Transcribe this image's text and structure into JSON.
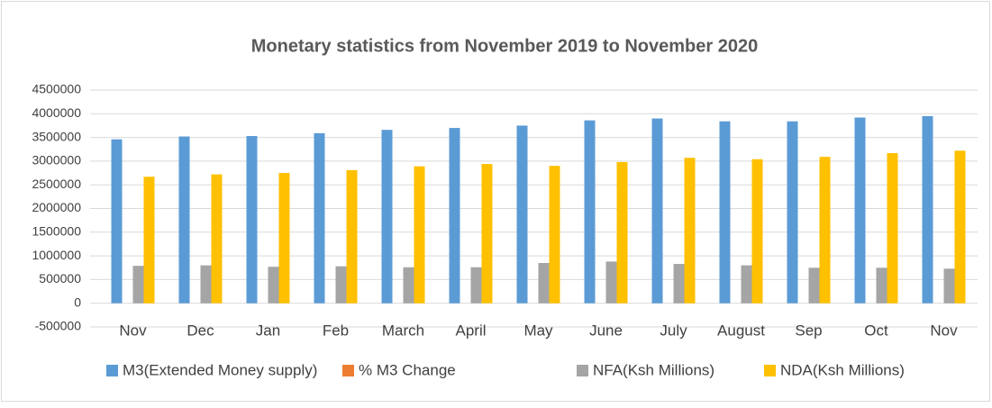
{
  "chart_data": {
    "type": "bar",
    "title": "Monetary statistics from November 2019 to November 2020",
    "categories": [
      "Nov",
      "Dec",
      "Jan",
      "Feb",
      "March",
      "April",
      "May",
      "June",
      "July",
      "August",
      "Sep",
      "Oct",
      "Nov"
    ],
    "series": [
      {
        "name": "M3(Extended Money supply)",
        "color": "#5b9bd5",
        "values": [
          3460000,
          3520000,
          3530000,
          3590000,
          3660000,
          3700000,
          3750000,
          3860000,
          3900000,
          3840000,
          3840000,
          3920000,
          3950000
        ]
      },
      {
        "name": "% M3 Change",
        "color": "#ed7d31",
        "values": [
          5.6,
          5.9,
          6.0,
          7.1,
          8.1,
          8.0,
          8.2,
          10.8,
          12.0,
          11.3,
          11.1,
          12.1,
          13.4
        ]
      },
      {
        "name": "NFA(Ksh Millions)",
        "color": "#a5a5a5",
        "values": [
          790000,
          800000,
          770000,
          780000,
          760000,
          760000,
          850000,
          880000,
          830000,
          800000,
          750000,
          750000,
          730000
        ]
      },
      {
        "name": "NDA(Ksh Millions)",
        "color": "#ffc000",
        "values": [
          2670000,
          2720000,
          2750000,
          2810000,
          2890000,
          2940000,
          2900000,
          2980000,
          3070000,
          3040000,
          3090000,
          3170000,
          3220000
        ]
      }
    ],
    "ylim": [
      -500000,
      4500000
    ],
    "yticks": [
      -500000,
      0,
      500000,
      1000000,
      1500000,
      2000000,
      2500000,
      3000000,
      3500000,
      4000000,
      4500000
    ],
    "grid": true,
    "legend": "bottom"
  }
}
